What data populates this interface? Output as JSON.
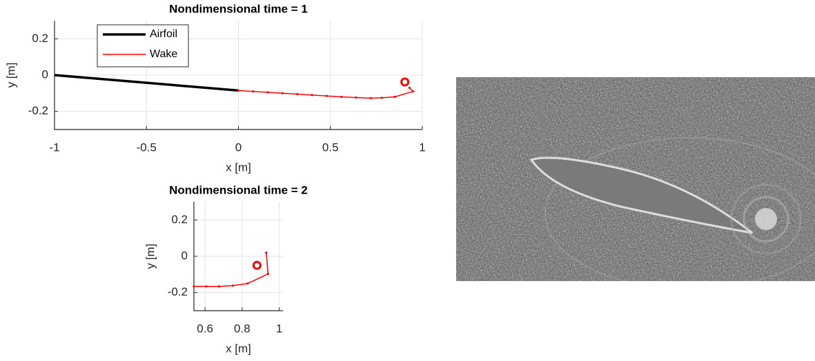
{
  "chart_data": [
    {
      "type": "line",
      "title": "Nondimensional time = 1",
      "xlabel": "x [m]",
      "ylabel": "y [m]",
      "xlim": [
        -1,
        1
      ],
      "ylim": [
        -0.3,
        0.3
      ],
      "xticks": [
        -1,
        -0.5,
        0,
        0.5,
        1
      ],
      "yticks": [
        -0.2,
        0,
        0.2
      ],
      "grid": true,
      "legend": "upper left",
      "series": [
        {
          "name": "Airfoil",
          "color": "#000000",
          "x": [
            -1,
            0
          ],
          "values": [
            0,
            -0.085
          ]
        },
        {
          "name": "Wake",
          "color": "#ff0000",
          "x": [
            0,
            0.08,
            0.16,
            0.24,
            0.32,
            0.4,
            0.48,
            0.56,
            0.64,
            0.72,
            0.78,
            0.85,
            0.95,
            0.93
          ],
          "values": [
            -0.085,
            -0.09,
            -0.095,
            -0.1,
            -0.105,
            -0.11,
            -0.115,
            -0.12,
            -0.124,
            -0.127,
            -0.125,
            -0.12,
            -0.09,
            -0.07
          ]
        },
        {
          "color": "#ff0000",
          "x": [
            0.905
          ],
          "values": [
            -0.038
          ]
        }
      ]
    },
    {
      "type": "line",
      "title": "Nondimensional time = 2",
      "xlabel": "x [m]",
      "ylabel": "y [m]",
      "xlim": [
        0.54,
        1.02
      ],
      "ylim": [
        -0.3,
        0.3
      ],
      "xticks": [
        0.6,
        0.8,
        1
      ],
      "yticks": [
        -0.2,
        0,
        0.2
      ],
      "grid": true,
      "series": [
        {
          "color": "#ff0000",
          "x": [
            0.54,
            0.607,
            0.676,
            0.75,
            0.83,
            0.94,
            0.93
          ],
          "values": [
            -0.166,
            -0.166,
            -0.166,
            -0.162,
            -0.15,
            -0.097,
            0.02
          ]
        },
        {
          "color": "#ff0000",
          "x": [
            0.88
          ],
          "values": [
            -0.05
          ]
        }
      ]
    }
  ]
}
